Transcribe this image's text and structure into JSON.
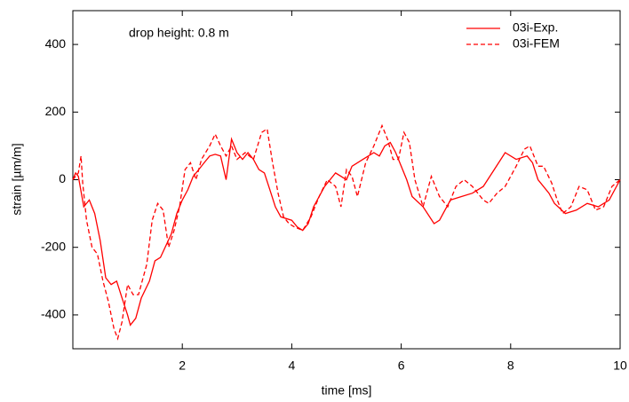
{
  "chart_data": {
    "type": "line",
    "annotation": "drop height: 0.8 m",
    "xlabel": "time [ms]",
    "ylabel": "strain [µm/m]",
    "xlim": [
      0,
      10
    ],
    "ylim": [
      -500,
      500
    ],
    "xticks": [
      2,
      4,
      6,
      8,
      10
    ],
    "yticks": [
      -400,
      -200,
      0,
      200,
      400
    ],
    "legend": "upper right",
    "series": [
      {
        "name": "03i-Exp.",
        "color": "#ff0000",
        "dash": "solid",
        "x": [
          0,
          0.05,
          0.1,
          0.2,
          0.3,
          0.4,
          0.5,
          0.6,
          0.7,
          0.8,
          0.9,
          1.0,
          1.05,
          1.15,
          1.25,
          1.4,
          1.5,
          1.6,
          1.8,
          1.9,
          2.0,
          2.1,
          2.2,
          2.3,
          2.4,
          2.5,
          2.6,
          2.7,
          2.8,
          2.9,
          3.0,
          3.1,
          3.2,
          3.3,
          3.4,
          3.5,
          3.6,
          3.7,
          3.8,
          4.0,
          4.1,
          4.2,
          4.3,
          4.4,
          4.6,
          4.8,
          5.0,
          5.1,
          5.3,
          5.5,
          5.6,
          5.7,
          5.8,
          5.9,
          6.0,
          6.1,
          6.2,
          6.4,
          6.6,
          6.7,
          6.9,
          7.1,
          7.3,
          7.5,
          7.7,
          7.9,
          8.1,
          8.3,
          8.4,
          8.5,
          8.7,
          8.8,
          9.0,
          9.2,
          9.4,
          9.6,
          9.8,
          10
        ],
        "values": [
          0,
          20,
          10,
          -80,
          -60,
          -100,
          -180,
          -290,
          -310,
          -300,
          -350,
          -400,
          -430,
          -410,
          -350,
          -300,
          -240,
          -230,
          -160,
          -100,
          -60,
          -30,
          10,
          30,
          50,
          70,
          75,
          70,
          0,
          120,
          80,
          60,
          80,
          60,
          30,
          20,
          -30,
          -80,
          -110,
          -120,
          -140,
          -150,
          -130,
          -80,
          -20,
          20,
          0,
          40,
          60,
          80,
          70,
          100,
          110,
          80,
          40,
          0,
          -50,
          -80,
          -130,
          -120,
          -60,
          -50,
          -40,
          -20,
          30,
          80,
          60,
          70,
          50,
          0,
          -40,
          -70,
          -100,
          -90,
          -70,
          -80,
          -60,
          0
        ]
      },
      {
        "name": "03i-FEM",
        "color": "#ff0000",
        "dash": "dashed",
        "x": [
          0,
          0.1,
          0.15,
          0.18,
          0.25,
          0.35,
          0.45,
          0.55,
          0.65,
          0.75,
          0.82,
          0.9,
          1.0,
          1.1,
          1.2,
          1.35,
          1.45,
          1.55,
          1.65,
          1.75,
          1.85,
          1.95,
          2.05,
          2.15,
          2.25,
          2.35,
          2.5,
          2.6,
          2.7,
          2.8,
          2.9,
          3.0,
          3.15,
          3.3,
          3.45,
          3.55,
          3.65,
          3.75,
          3.85,
          3.95,
          4.05,
          4.2,
          4.35,
          4.5,
          4.65,
          4.8,
          4.9,
          5.0,
          5.1,
          5.2,
          5.35,
          5.5,
          5.65,
          5.75,
          5.85,
          5.95,
          6.05,
          6.15,
          6.25,
          6.4,
          6.55,
          6.7,
          6.85,
          7.0,
          7.15,
          7.3,
          7.5,
          7.6,
          7.75,
          7.9,
          8.1,
          8.25,
          8.35,
          8.5,
          8.6,
          8.75,
          8.85,
          8.95,
          9.1,
          9.25,
          9.4,
          9.55,
          9.7,
          9.85,
          10
        ],
        "values": [
          0,
          20,
          70,
          -10,
          -120,
          -200,
          -220,
          -300,
          -360,
          -440,
          -470,
          -420,
          -310,
          -340,
          -340,
          -250,
          -120,
          -70,
          -90,
          -200,
          -150,
          -80,
          30,
          50,
          0,
          60,
          100,
          135,
          100,
          70,
          100,
          60,
          80,
          60,
          140,
          150,
          50,
          -40,
          -110,
          -130,
          -140,
          -150,
          -110,
          -50,
          0,
          -20,
          -80,
          30,
          10,
          -50,
          50,
          100,
          160,
          120,
          60,
          60,
          140,
          110,
          0,
          -80,
          10,
          -50,
          -80,
          -20,
          0,
          -20,
          -60,
          -70,
          -40,
          -20,
          40,
          90,
          100,
          40,
          40,
          -10,
          -60,
          -100,
          -80,
          -20,
          -30,
          -90,
          -80,
          -20,
          0
        ]
      }
    ]
  }
}
